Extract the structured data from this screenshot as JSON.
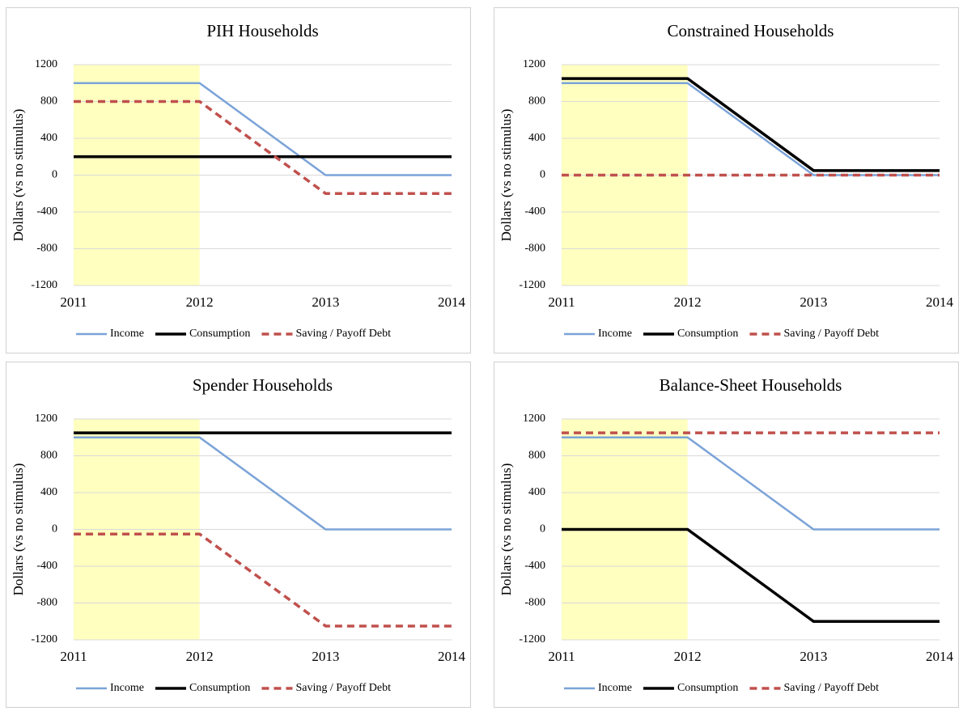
{
  "chart_data": [
    {
      "type": "line",
      "title": "PIH Households",
      "ylabel": "Dollars (vs no stimulus)",
      "x": [
        2011,
        2012,
        2013,
        2014
      ],
      "xlim": [
        2011,
        2014
      ],
      "xticks": [
        2011,
        2012,
        2013,
        2014
      ],
      "ylim": [
        -1200,
        1200
      ],
      "yticks": [
        -1200,
        -800,
        -400,
        0,
        400,
        800,
        1200
      ],
      "grid": true,
      "highlight_x": [
        2011,
        2012
      ],
      "highlight_color": "#ffffc0",
      "series": [
        {
          "name": "Income",
          "color": "#7ba3d8",
          "dashed": false,
          "values": [
            1000,
            1000,
            0,
            0
          ]
        },
        {
          "name": "Consumption",
          "color": "#000000",
          "dashed": false,
          "values": [
            200,
            200,
            200,
            200
          ]
        },
        {
          "name": "Saving / Payoff Debt",
          "color": "#c0504d",
          "dashed": true,
          "values": [
            800,
            800,
            -200,
            -200
          ]
        }
      ]
    },
    {
      "type": "line",
      "title": "Constrained Households",
      "ylabel": "Dollars (vs no stimulus)",
      "x": [
        2011,
        2012,
        2013,
        2014
      ],
      "xlim": [
        2011,
        2014
      ],
      "xticks": [
        2011,
        2012,
        2013,
        2014
      ],
      "ylim": [
        -1200,
        1200
      ],
      "yticks": [
        -1200,
        -800,
        -400,
        0,
        400,
        800,
        1200
      ],
      "grid": true,
      "highlight_x": [
        2011,
        2012
      ],
      "highlight_color": "#ffffc0",
      "series": [
        {
          "name": "Income",
          "color": "#7ba3d8",
          "dashed": false,
          "values": [
            1000,
            1000,
            0,
            0
          ]
        },
        {
          "name": "Consumption",
          "color": "#000000",
          "dashed": false,
          "values": [
            1050,
            1050,
            50,
            50
          ]
        },
        {
          "name": "Saving / Payoff Debt",
          "color": "#c0504d",
          "dashed": true,
          "values": [
            0,
            0,
            0,
            0
          ]
        }
      ]
    },
    {
      "type": "line",
      "title": "Spender Households",
      "ylabel": "Dollars (vs no stimulus)",
      "x": [
        2011,
        2012,
        2013,
        2014
      ],
      "xlim": [
        2011,
        2014
      ],
      "xticks": [
        2011,
        2012,
        2013,
        2014
      ],
      "ylim": [
        -1200,
        1200
      ],
      "yticks": [
        -1200,
        -800,
        -400,
        0,
        400,
        800,
        1200
      ],
      "grid": true,
      "highlight_x": [
        2011,
        2012
      ],
      "highlight_color": "#ffffc0",
      "series": [
        {
          "name": "Income",
          "color": "#7ba3d8",
          "dashed": false,
          "values": [
            1000,
            1000,
            0,
            0
          ]
        },
        {
          "name": "Consumption",
          "color": "#000000",
          "dashed": false,
          "values": [
            1050,
            1050,
            1050,
            1050
          ]
        },
        {
          "name": "Saving / Payoff Debt",
          "color": "#c0504d",
          "dashed": true,
          "values": [
            -50,
            -50,
            -1050,
            -1050
          ]
        }
      ]
    },
    {
      "type": "line",
      "title": "Balance-Sheet Households",
      "ylabel": "Dollars (vs no stimulus)",
      "x": [
        2011,
        2012,
        2013,
        2014
      ],
      "xlim": [
        2011,
        2014
      ],
      "xticks": [
        2011,
        2012,
        2013,
        2014
      ],
      "ylim": [
        -1200,
        1200
      ],
      "yticks": [
        -1200,
        -800,
        -400,
        0,
        400,
        800,
        1200
      ],
      "grid": true,
      "highlight_x": [
        2011,
        2012
      ],
      "highlight_color": "#ffffc0",
      "series": [
        {
          "name": "Income",
          "color": "#7ba3d8",
          "dashed": false,
          "values": [
            1000,
            1000,
            0,
            0
          ]
        },
        {
          "name": "Consumption",
          "color": "#000000",
          "dashed": false,
          "values": [
            0,
            0,
            -1000,
            -1000
          ]
        },
        {
          "name": "Saving / Payoff Debt",
          "color": "#c0504d",
          "dashed": true,
          "values": [
            1050,
            1050,
            1050,
            1050
          ]
        }
      ]
    }
  ]
}
